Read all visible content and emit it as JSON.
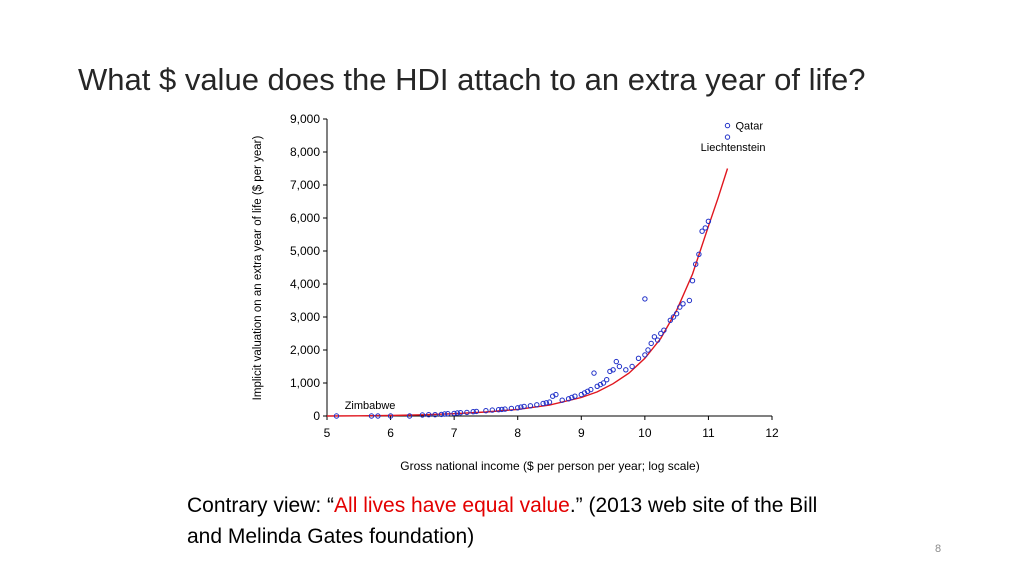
{
  "slide": {
    "title": "What $ value does the HDI attach to an extra year of life?",
    "caption_before": "Contrary view: “",
    "caption_highlight": "All lives have equal value",
    "caption_after": ".” (2013 web site of the Bill and Melinda Gates foundation)",
    "page_number": "8"
  },
  "colors": {
    "points": "#1f2fc8",
    "fit_line": "#e0161e",
    "highlight_text": "#e30000"
  },
  "chart_data": {
    "type": "scatter",
    "title": "",
    "xlabel": "Gross national income ($ per person per year; log scale)",
    "ylabel": "Implicit valuation on an extra year of life ($ per year)",
    "xlim": [
      5,
      12
    ],
    "ylim": [
      0,
      9000
    ],
    "x_ticks": [
      "5",
      "6",
      "7",
      "8",
      "9",
      "10",
      "11",
      "12"
    ],
    "y_ticks": [
      "0",
      "1,000",
      "2,000",
      "3,000",
      "4,000",
      "5,000",
      "6,000",
      "7,000",
      "8,000",
      "9,000"
    ],
    "grid": false,
    "legend": "none",
    "annotations": [
      {
        "text": "Qatar",
        "x": 11.3,
        "y": 8800
      },
      {
        "text": "Liechtenstein",
        "x": 11.3,
        "y": 8450
      },
      {
        "text": "Zimbabwe",
        "x": 5.2,
        "y": 0
      }
    ],
    "fit_line": {
      "x": [
        5.0,
        5.5,
        6.0,
        6.5,
        7.0,
        7.5,
        8.0,
        8.5,
        9.0,
        9.25,
        9.5,
        9.75,
        10.0,
        10.25,
        10.5,
        10.75,
        11.0,
        11.15,
        11.3
      ],
      "y": [
        0,
        5,
        15,
        35,
        70,
        120,
        200,
        330,
        560,
        730,
        980,
        1300,
        1750,
        2350,
        3200,
        4300,
        5750,
        6600,
        7500
      ]
    },
    "series": [
      {
        "x": [
          5.15,
          5.7,
          5.8,
          6.0,
          6.3,
          6.5,
          6.6,
          6.7,
          6.8,
          6.85,
          6.9,
          7.0,
          7.05,
          7.1,
          7.2,
          7.3,
          7.35,
          7.5,
          7.6,
          7.7,
          7.75,
          7.8,
          7.9,
          8.0,
          8.05,
          8.1,
          8.2,
          8.3,
          8.4,
          8.45,
          8.5,
          8.55,
          8.6,
          8.7,
          8.8,
          8.85,
          8.9,
          9.0,
          9.05,
          9.1,
          9.15,
          9.2,
          9.25,
          9.3,
          9.35,
          9.4,
          9.45,
          9.5,
          9.55,
          9.6,
          9.7,
          9.8,
          9.9,
          10.0,
          10.05,
          10.1,
          10.15,
          10.2,
          10.25,
          10.3,
          10.4,
          10.45,
          10.5,
          10.55,
          10.6,
          10.7,
          10.75,
          10.8,
          10.85,
          10.9,
          10.95,
          11.0,
          11.3,
          11.3
        ],
        "y": [
          0,
          0,
          0,
          0,
          0,
          30,
          40,
          40,
          50,
          60,
          70,
          80,
          90,
          100,
          110,
          130,
          140,
          160,
          180,
          190,
          200,
          210,
          230,
          250,
          270,
          290,
          310,
          340,
          380,
          400,
          420,
          600,
          650,
          480,
          520,
          560,
          600,
          650,
          700,
          750,
          800,
          1300,
          900,
          950,
          1000,
          1100,
          1350,
          1400,
          1650,
          1500,
          1400,
          1500,
          1750,
          1850,
          2000,
          2200,
          2400,
          2300,
          2500,
          2600,
          2900,
          3000,
          3100,
          3300,
          3400,
          3500,
          4100,
          4600,
          4900,
          5600,
          5700,
          5900,
          8800,
          8450
        ]
      },
      {
        "x": [
          10.0
        ],
        "y": [
          3550
        ]
      }
    ]
  }
}
